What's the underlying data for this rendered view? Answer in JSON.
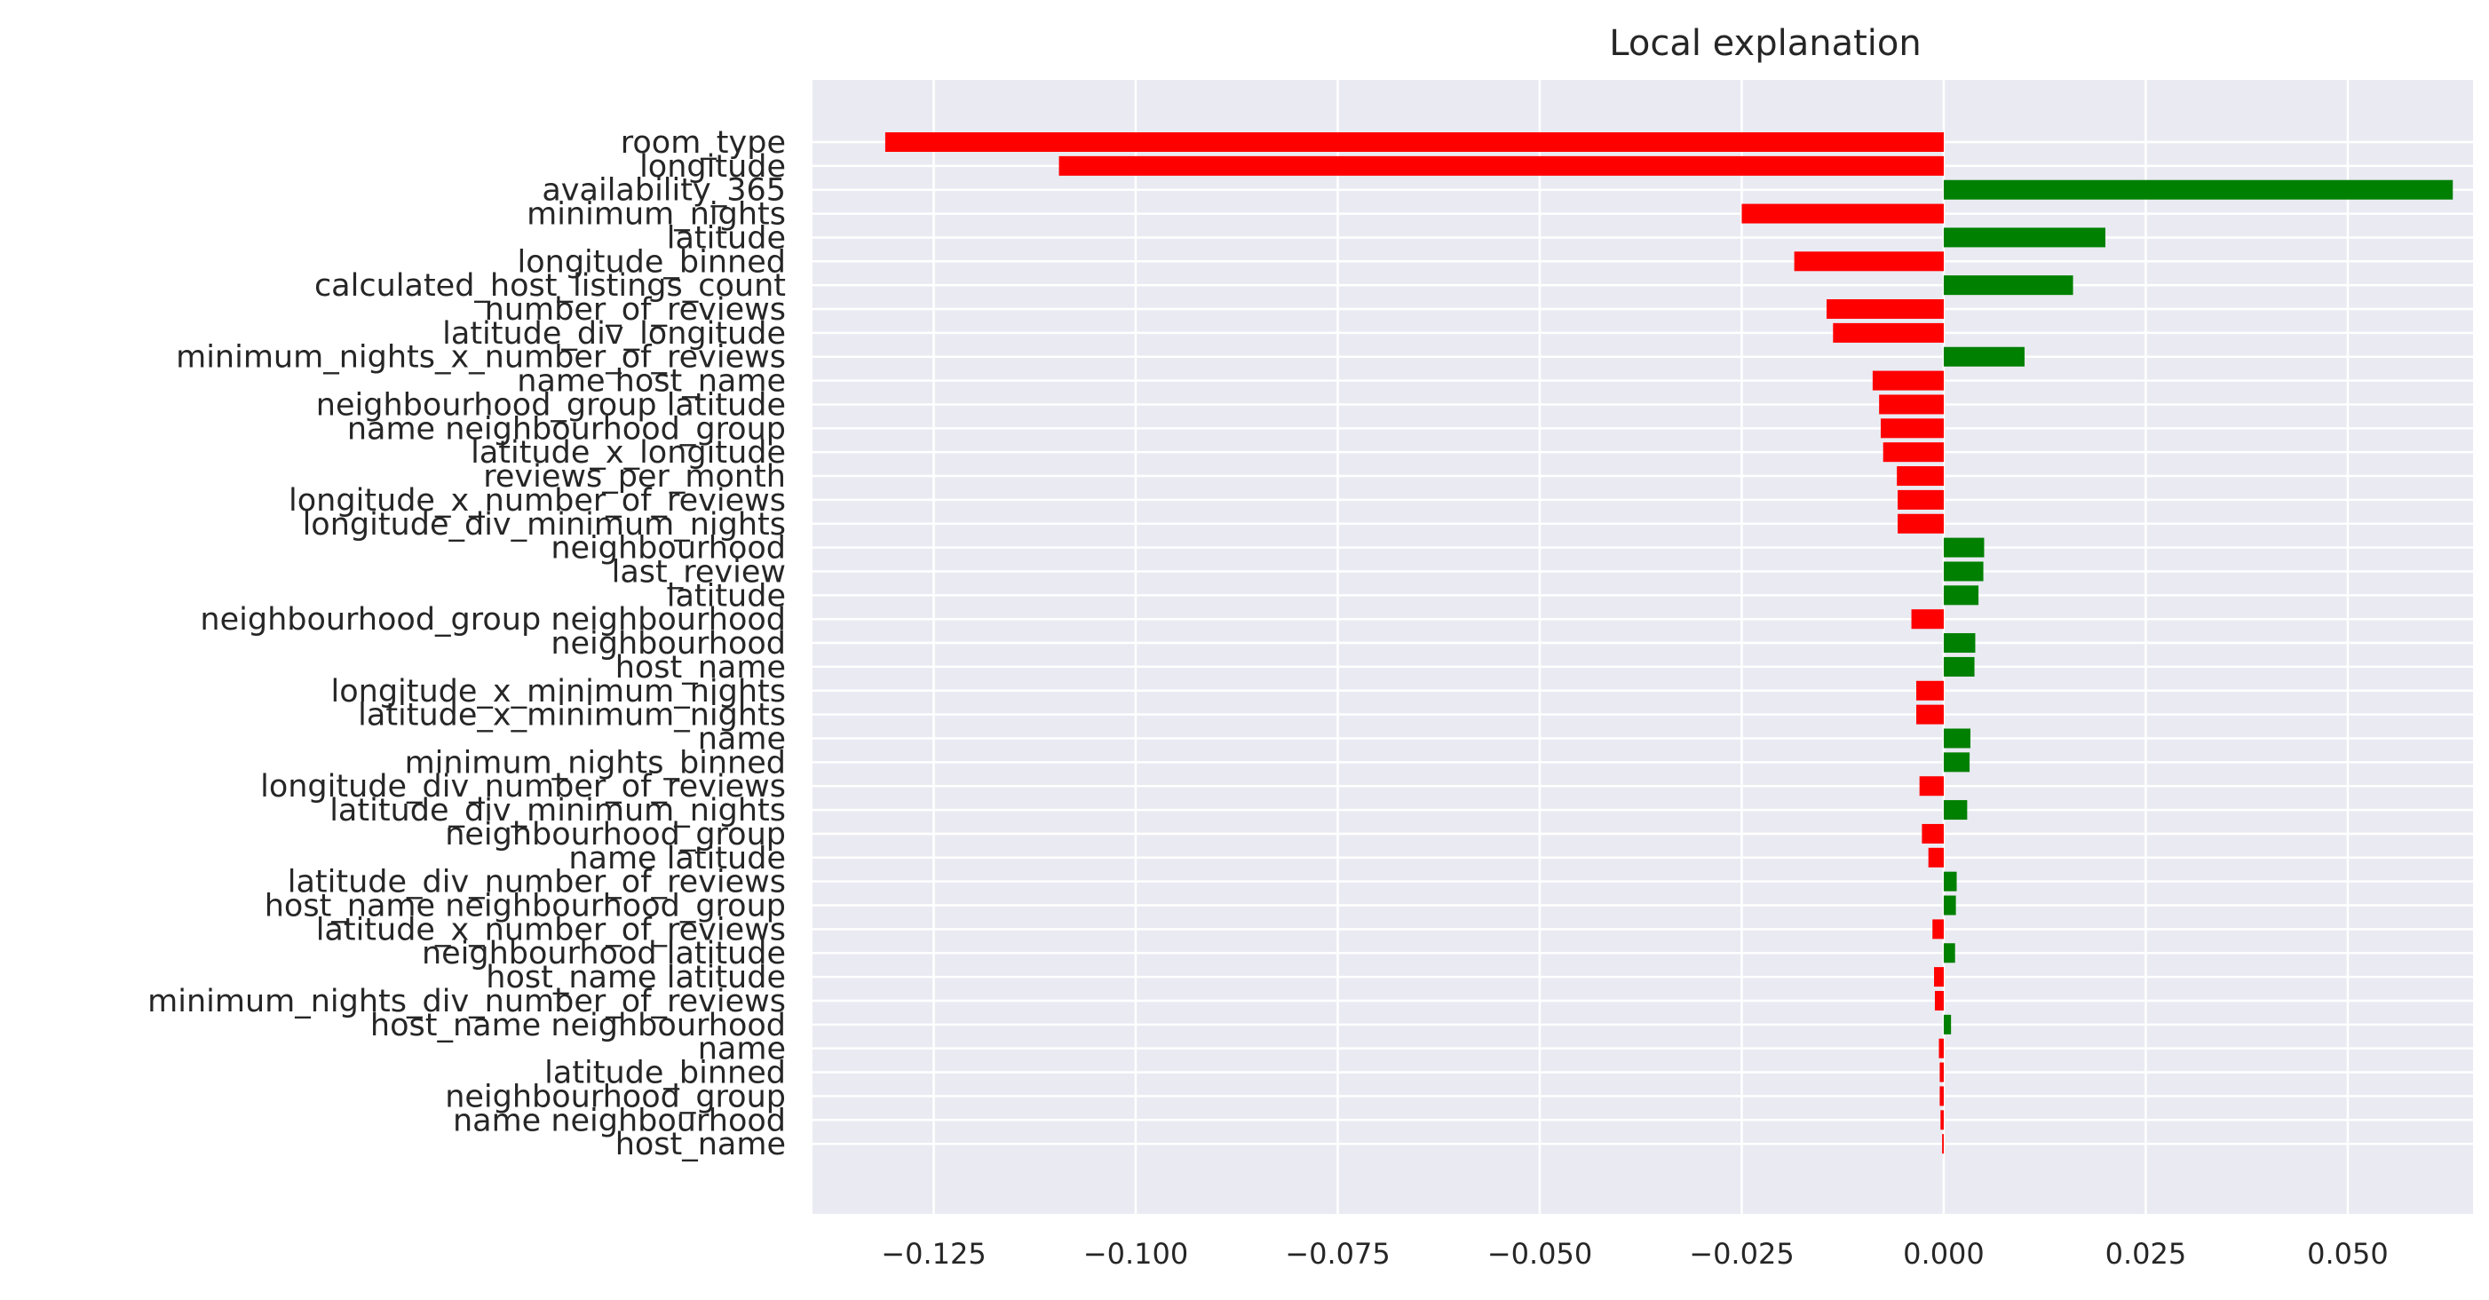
{
  "chart_data": {
    "type": "bar",
    "orientation": "horizontal",
    "title": "Local explanation",
    "xlabel": "",
    "ylabel": "",
    "xlim": [
      -0.14,
      0.0655
    ],
    "xticks": [
      -0.125,
      -0.1,
      -0.075,
      -0.05,
      -0.025,
      0.0,
      0.025,
      0.05
    ],
    "xtick_labels": [
      "−0.125",
      "−0.100",
      "−0.075",
      "−0.050",
      "−0.025",
      "0.000",
      "0.025",
      "0.050"
    ],
    "grid": true,
    "colors": {
      "positive": "#008000",
      "negative": "#ff0000",
      "background": "#eaeaf2",
      "grid": "#ffffff"
    },
    "categories": [
      "room_type",
      "longitude",
      "availability_365",
      "minimum_nights",
      "latitude",
      "longitude_binned",
      "calculated_host_listings_count",
      "number_of_reviews",
      "latitude_div_longitude",
      "minimum_nights_x_number_of_reviews",
      "name host_name",
      "neighbourhood_group latitude",
      "name neighbourhood_group",
      "latitude_x_longitude",
      "reviews_per_month",
      "longitude_x_number_of_reviews",
      "longitude_div_minimum_nights",
      "neighbourhood",
      "last_review",
      "latitude",
      "neighbourhood_group neighbourhood",
      "neighbourhood",
      "host_name",
      "longitude_x_minimum_nights",
      "latitude_x_minimum_nights",
      "name",
      "minimum_nights_binned",
      "longitude_div_number_of_reviews",
      "latitude_div_minimum_nights",
      "neighbourhood_group",
      "name latitude",
      "latitude_div_number_of_reviews",
      "host_name neighbourhood_group",
      "latitude_x_number_of_reviews",
      "neighbourhood latitude",
      "host_name latitude",
      "minimum_nights_div_number_of_reviews",
      "host_name neighbourhood",
      "name",
      "latitude_binned",
      "neighbourhood_group",
      "name neighbourhood",
      "host_name"
    ],
    "values": [
      -0.131,
      -0.1095,
      0.063,
      -0.025,
      0.02,
      -0.0185,
      0.016,
      -0.0145,
      -0.0137,
      0.01,
      -0.0088,
      -0.008,
      -0.0078,
      -0.0075,
      -0.0058,
      -0.0057,
      -0.0057,
      0.005,
      0.0049,
      0.0043,
      -0.004,
      0.0039,
      0.0038,
      -0.0034,
      -0.0034,
      0.0033,
      0.0032,
      -0.003,
      0.0029,
      -0.0027,
      -0.0019,
      0.0016,
      0.0015,
      -0.0014,
      0.0014,
      -0.0012,
      -0.0011,
      0.0009,
      -0.0006,
      -0.0005,
      -0.0005,
      -0.0004,
      -0.0002
    ]
  }
}
